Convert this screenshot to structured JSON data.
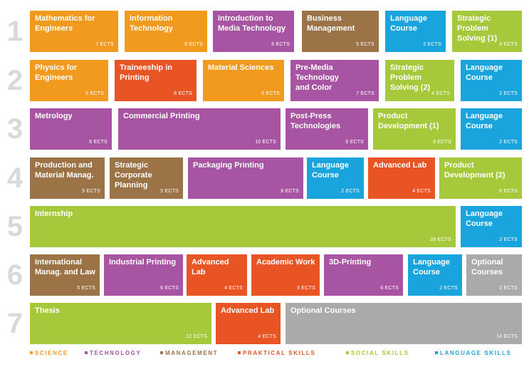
{
  "colors": {
    "science": "#f29a1d",
    "technology": "#a754a3",
    "management": "#9c7247",
    "practical": "#e85424",
    "social": "#a6c93b",
    "language": "#1aa4dd",
    "optional": "#a9aaa9"
  },
  "semesters": [
    {
      "number": "1",
      "modules": [
        {
          "title": "Mathematics for\nEngineers",
          "ects": "7 ECTS",
          "category": "science"
        },
        {
          "title": "Information\nTechnology",
          "ects": "6 ECTS",
          "category": "science"
        },
        {
          "title": "Introduction to\nMedia Technology",
          "ects": "6 ECTS",
          "category": "technology"
        },
        {
          "title": "Business\nManagement",
          "ects": "5 ECTS",
          "category": "management"
        },
        {
          "title": "Language\nCourse",
          "ects": "2 ECTS",
          "category": "language"
        },
        {
          "title": "Strategic Problem\nSolving (1)",
          "ects": "4 ECTS",
          "category": "social"
        }
      ]
    },
    {
      "number": "2",
      "modules": [
        {
          "title": "Physics for\nEngineers",
          "ects": "5 ECTS",
          "category": "science"
        },
        {
          "title": "Traineeship in\nPrinting",
          "ects": "6 ECTS",
          "category": "practical"
        },
        {
          "title": "Material Sciences",
          "ects": "6 ECTS",
          "category": "science"
        },
        {
          "title": "Pre-Media Technology\nand Color",
          "ects": "7 ECTS",
          "category": "technology"
        },
        {
          "title": "Strategic Problem\nSolving (2)",
          "ects": "4 ECTS",
          "category": "social"
        },
        {
          "title": "Language\nCourse",
          "ects": "2 ECTS",
          "category": "language"
        }
      ]
    },
    {
      "number": "3",
      "modules": [
        {
          "title": "Metrology",
          "ects": "6 ECTS",
          "category": "technology"
        },
        {
          "title": "Commercial Printing",
          "ects": "10 ECTS",
          "category": "technology"
        },
        {
          "title": "Post-Press\nTechnologies",
          "ects": "6 ECTS",
          "category": "technology"
        },
        {
          "title": "Product\nDevelopment (1)",
          "ects": "6 ECTS",
          "category": "social"
        },
        {
          "title": "Language\nCourse",
          "ects": "2 ECTS",
          "category": "language"
        }
      ]
    },
    {
      "number": "4",
      "modules": [
        {
          "title": "Production and\nMaterial Manag.",
          "ects": "5 ECTS",
          "category": "management"
        },
        {
          "title": "Strategic Corporate\nPlanning",
          "ects": "5 ECTS",
          "category": "management"
        },
        {
          "title": "Packaging Printing",
          "ects": "8 ECTS",
          "category": "technology"
        },
        {
          "title": "Language\nCourse",
          "ects": "2 ECTS",
          "category": "language"
        },
        {
          "title": "Advanced Lab",
          "ects": "4 ECTS",
          "category": "practical"
        },
        {
          "title": "Product\nDevelopment (2)",
          "ects": "6 ECTS",
          "category": "social"
        }
      ]
    },
    {
      "number": "5",
      "modules": [
        {
          "title": "Internship",
          "ects": "28 ECTS",
          "category": "social"
        },
        {
          "title": "Language\nCourse",
          "ects": "2 ECTS",
          "category": "language"
        }
      ]
    },
    {
      "number": "6",
      "modules": [
        {
          "title": "International\nManag. and Law",
          "ects": "5 ECTS",
          "category": "management"
        },
        {
          "title": "Industrial Printing",
          "ects": "6 ECTS",
          "category": "technology"
        },
        {
          "title": "Advanced Lab",
          "ects": "4 ECTS",
          "category": "practical"
        },
        {
          "title": "Academic Work",
          "ects": "5 ECTS",
          "category": "practical"
        },
        {
          "title": "3D-Printing",
          "ects": "6 ECTS",
          "category": "technology"
        },
        {
          "title": "Language\nCourse",
          "ects": "2 ECTS",
          "category": "language"
        },
        {
          "title": "Optional\nCourses",
          "ects": "2 ECTS",
          "category": "optional"
        }
      ]
    },
    {
      "number": "7",
      "modules": [
        {
          "title": "Thesis",
          "ects": "12 ECTS",
          "category": "social"
        },
        {
          "title": "Advanced Lab",
          "ects": "4 ECTS",
          "category": "practical"
        },
        {
          "title": "Optional Courses",
          "ects": "14 ECTS",
          "category": "optional"
        }
      ]
    }
  ],
  "legend": [
    {
      "label": "SCIENCE",
      "category": "science"
    },
    {
      "label": "TECHNOLOGY",
      "category": "technology"
    },
    {
      "label": "MANAGEMENT",
      "category": "management"
    },
    {
      "label": "PRAKTICAL SKILLS",
      "category": "practical"
    },
    {
      "label": "SOCIAL SKILLS",
      "category": "social"
    },
    {
      "label": "LANGUAGE SKILLS",
      "category": "language"
    }
  ]
}
